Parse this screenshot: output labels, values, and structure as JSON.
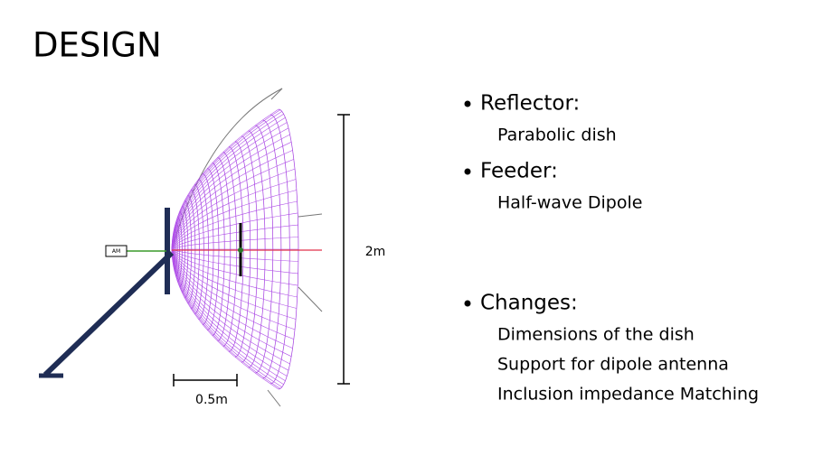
{
  "header": {
    "title": "DESIGN"
  },
  "diagram": {
    "source_label": "AM",
    "height_label": "2m",
    "depth_label": "0.5m"
  },
  "bullets": [
    {
      "label": "Reflector:",
      "items": [
        "Parabolic dish"
      ]
    },
    {
      "label": "Feeder:",
      "items": [
        "Half-wave Dipole"
      ]
    },
    {
      "label": "Changes:",
      "items": [
        "Dimensions of the dish",
        "Support for dipole antenna",
        "Inclusion impedance Matching"
      ]
    }
  ]
}
